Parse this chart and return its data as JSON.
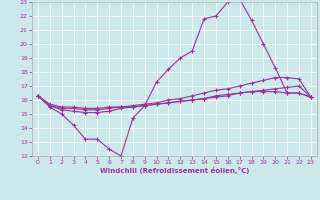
{
  "title": "",
  "xlabel": "Windchill (Refroidissement éolien,°C)",
  "ylabel": "",
  "xlim": [
    -0.5,
    23.5
  ],
  "ylim": [
    12,
    23
  ],
  "yticks": [
    12,
    13,
    14,
    15,
    16,
    17,
    18,
    19,
    20,
    21,
    22,
    23
  ],
  "xticks": [
    0,
    1,
    2,
    3,
    4,
    5,
    6,
    7,
    8,
    9,
    10,
    11,
    12,
    13,
    14,
    15,
    16,
    17,
    18,
    19,
    20,
    21,
    22,
    23
  ],
  "bg_color": "#cce8ea",
  "line_color": "#993399",
  "grid_color": "#ffffff",
  "tick_color": "#993399",
  "series": [
    [
      16.3,
      15.5,
      15.0,
      14.2,
      13.2,
      13.2,
      12.5,
      12.0,
      14.7,
      15.6,
      17.3,
      18.2,
      19.0,
      19.5,
      21.8,
      22.0,
      23.0,
      23.2,
      21.7,
      20.0,
      18.3,
      16.5,
      16.5,
      16.2
    ],
    [
      16.3,
      15.6,
      15.4,
      15.4,
      15.3,
      15.3,
      15.4,
      15.5,
      15.5,
      15.6,
      15.7,
      15.8,
      15.9,
      16.0,
      16.1,
      16.3,
      16.4,
      16.5,
      16.6,
      16.7,
      16.8,
      16.9,
      17.0,
      16.2
    ],
    [
      16.3,
      15.7,
      15.5,
      15.5,
      15.4,
      15.4,
      15.5,
      15.5,
      15.6,
      15.7,
      15.8,
      16.0,
      16.1,
      16.3,
      16.5,
      16.7,
      16.8,
      17.0,
      17.2,
      17.4,
      17.6,
      17.6,
      17.5,
      16.2
    ],
    [
      16.3,
      15.6,
      15.3,
      15.2,
      15.1,
      15.1,
      15.2,
      15.4,
      15.5,
      15.6,
      15.7,
      15.8,
      15.9,
      16.0,
      16.1,
      16.2,
      16.3,
      16.5,
      16.6,
      16.6,
      16.6,
      16.5,
      16.5,
      16.2
    ]
  ],
  "figsize": [
    3.2,
    2.0
  ],
  "dpi": 100
}
